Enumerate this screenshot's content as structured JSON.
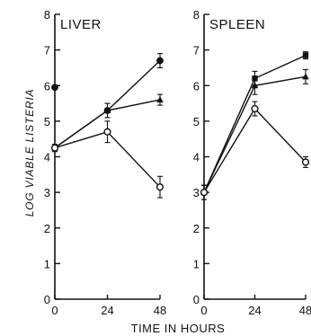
{
  "chart_data": {
    "type": "line",
    "xlabel": "TIME IN HOURS",
    "ylabel": "LOG VIABLE LISTERIA",
    "xlim": [
      0,
      48
    ],
    "ylim": [
      0,
      8
    ],
    "x_ticks": [
      "0",
      "24",
      "48"
    ],
    "y_ticks": [
      "0",
      "1",
      "2",
      "3",
      "4",
      "5",
      "6",
      "7",
      "8"
    ],
    "grid": false,
    "legend": "none",
    "panels": [
      {
        "title": "LIVER",
        "extra_points": [
          {
            "x": 0,
            "y": 5.95,
            "marker": "filled-circle"
          }
        ],
        "series": [
          {
            "marker": "filled-circle",
            "x": [
              0,
              24,
              48
            ],
            "y": [
              4.25,
              5.3,
              6.7
            ],
            "err": [
              0.1,
              0.2,
              0.2
            ]
          },
          {
            "marker": "filled-triangle",
            "x": [
              0,
              24,
              48
            ],
            "y": [
              4.25,
              5.3,
              5.6
            ],
            "err": [
              0.1,
              0.2,
              0.15
            ]
          },
          {
            "marker": "open-circle",
            "x": [
              0,
              24,
              48
            ],
            "y": [
              4.25,
              4.7,
              3.15
            ],
            "err": [
              0.1,
              0.3,
              0.3
            ]
          }
        ]
      },
      {
        "title": "SPLEEN",
        "extra_points": [],
        "series": [
          {
            "marker": "filled-square",
            "x": [
              0,
              24,
              48
            ],
            "y": [
              3.0,
              6.2,
              6.85
            ],
            "err": [
              0.2,
              0.2,
              0.1
            ]
          },
          {
            "marker": "filled-triangle",
            "x": [
              0,
              24,
              48
            ],
            "y": [
              3.0,
              6.0,
              6.25
            ],
            "err": [
              0.2,
              0.25,
              0.2
            ]
          },
          {
            "marker": "open-circle",
            "x": [
              0,
              24,
              48
            ],
            "y": [
              3.0,
              5.35,
              3.85
            ],
            "err": [
              0.2,
              0.2,
              0.15
            ]
          }
        ]
      }
    ]
  }
}
